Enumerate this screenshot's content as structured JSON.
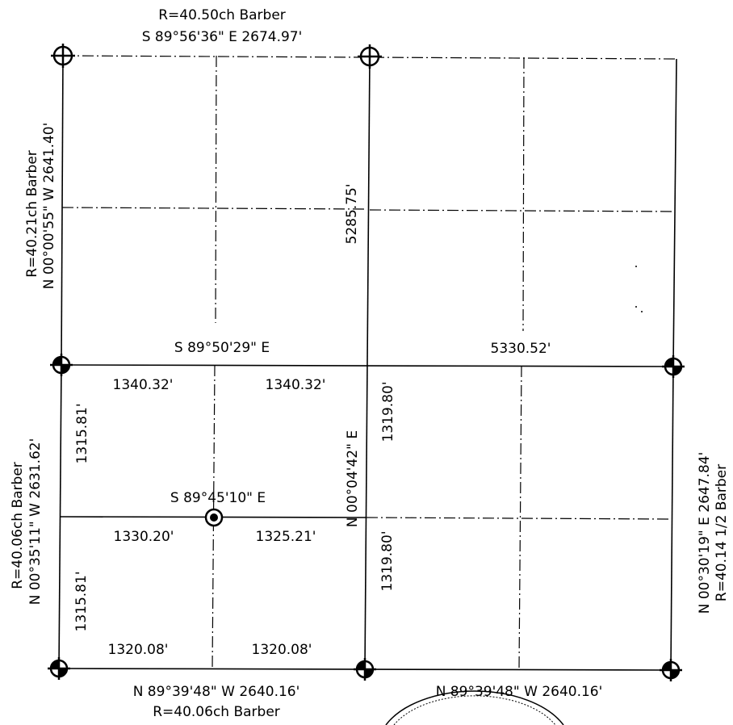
{
  "top": {
    "record": "R=40.50ch Barber",
    "bearing": "S 89°56'36\" E 2674.97'"
  },
  "left_upper": {
    "record": "R=40.21ch Barber",
    "bearing": "N 00°00'55\" W 2641.40'"
  },
  "left_lower": {
    "record": "R=40.06ch Barber",
    "bearing": "N 00°35'11\" W 2631.62'"
  },
  "right": {
    "bearing": "N 00°30'19\" E 2647.84'",
    "record": "R=40.14  1/2 Barber"
  },
  "bottom": {
    "west_bearing": "N 89°39'48\" W 2640.16'",
    "west_record": "R=40.06ch Barber",
    "east_bearing": "N 89°39'48\" W 2640.16'"
  },
  "center_line": {
    "bearing": "S 89°50'29\" E",
    "distance": "5330.52'"
  },
  "vertical_center": {
    "upper_distance": "5285.75'",
    "lower_bearing": "N 00°04'42\" E",
    "upper_quarter": "1319.80'",
    "lower_quarter": "1319.80'"
  },
  "sw_quarter": {
    "top_west": "1340.32'",
    "top_east": "1340.32'",
    "mid_bearing": "S 89°45'10\" E",
    "mid_west": "1330.20'",
    "mid_east": "1325.21'",
    "left_upper": "1315.81'",
    "left_lower": "1315.81'",
    "bottom_west": "1320.08'",
    "bottom_east": "1320.08'"
  },
  "monuments": {
    "found_cross": "crosshair-circle-icon",
    "quartered": "quartered-disc-icon",
    "center": "center-bullseye-icon"
  }
}
